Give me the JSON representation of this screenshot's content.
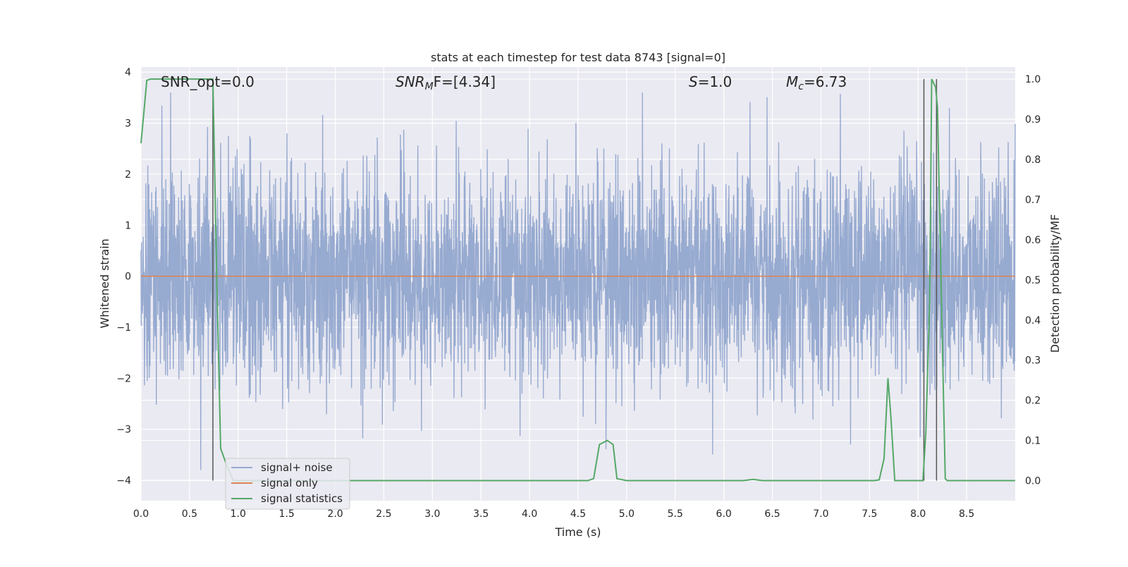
{
  "chart_data": {
    "type": "line",
    "title": "stats at each timestep for test data 8743 [signal=0]",
    "xlabel": "Time (s)",
    "ylabel": "Whitened strain",
    "ylabel_right": "Detection probability/MF",
    "xlim": [
      0.0,
      9.0
    ],
    "ylim": [
      -4.4,
      4.1
    ],
    "ylim_right": [
      -0.05,
      1.03
    ],
    "x_ticks": [
      "0.0",
      "0.5",
      "1.0",
      "1.5",
      "2.0",
      "2.5",
      "3.0",
      "3.5",
      "4.0",
      "4.5",
      "5.0",
      "5.5",
      "6.0",
      "6.5",
      "7.0",
      "7.5",
      "8.0",
      "8.5"
    ],
    "y_ticks": [
      "4",
      "3",
      "2",
      "1",
      "0",
      "−1",
      "−2",
      "−3",
      "−4"
    ],
    "y_ticks_right": [
      "1.0",
      "0.9",
      "0.8",
      "0.7",
      "0.6",
      "0.5",
      "0.4",
      "0.3",
      "0.2",
      "0.1",
      "0.0"
    ],
    "grid": true,
    "legend_position": "lower-left",
    "annotations": {
      "snr_opt": "SNR_opt=0.0",
      "snr_mf_prefix": "SNR",
      "snr_mf_sub": "M",
      "snr_mf_suffix": "F=[4.34]",
      "s_prefix": "S",
      "s_suffix": "=1.0",
      "mc_prefix": "M",
      "mc_sub": "c",
      "mc_suffix": "=6.73"
    },
    "vertical_markers_x": [
      0.74,
      8.06,
      8.19
    ],
    "series": [
      {
        "name": "signal+ noise",
        "color": "#97aad0",
        "axis": "left",
        "description_values": {
          "mean": 0.0,
          "std": 1.0,
          "max_peak": 3.6,
          "min_peak": -3.8
        }
      },
      {
        "name": "signal only",
        "color": "#dd8452",
        "axis": "left",
        "x": [
          0.0,
          9.0
        ],
        "y": [
          0.0,
          0.0
        ]
      },
      {
        "name": "signal statistics",
        "color": "#55a868",
        "axis": "right",
        "x": [
          0.0,
          0.06,
          0.1,
          0.15,
          0.2,
          0.3,
          0.4,
          0.5,
          0.6,
          0.7,
          0.74,
          0.78,
          0.82,
          0.88,
          0.95,
          1.0,
          2.0,
          3.0,
          4.0,
          4.6,
          4.66,
          4.72,
          4.8,
          4.86,
          4.9,
          5.0,
          5.5,
          6.0,
          6.2,
          6.3,
          6.4,
          7.0,
          7.55,
          7.6,
          7.65,
          7.69,
          7.72,
          7.76,
          7.8,
          8.0,
          8.05,
          8.08,
          8.12,
          8.14,
          8.18,
          8.2,
          8.25,
          8.28,
          8.3,
          8.5,
          9.0
        ],
        "y": [
          0.84,
          0.997,
          1.0,
          1.0,
          1.0,
          1.0,
          1.0,
          1.0,
          1.0,
          1.0,
          1.0,
          0.5,
          0.08,
          0.04,
          0.0,
          0.0,
          0.0,
          0.0,
          0.0,
          0.0,
          0.005,
          0.09,
          0.1,
          0.09,
          0.005,
          0.0,
          0.0,
          0.0,
          0.0,
          0.003,
          0.0,
          0.0,
          0.0,
          0.002,
          0.055,
          0.255,
          0.16,
          0.0,
          0.0,
          0.0,
          0.0,
          0.12,
          0.45,
          1.0,
          0.98,
          0.93,
          0.34,
          0.005,
          0.0,
          0.0,
          0.0
        ]
      }
    ]
  }
}
